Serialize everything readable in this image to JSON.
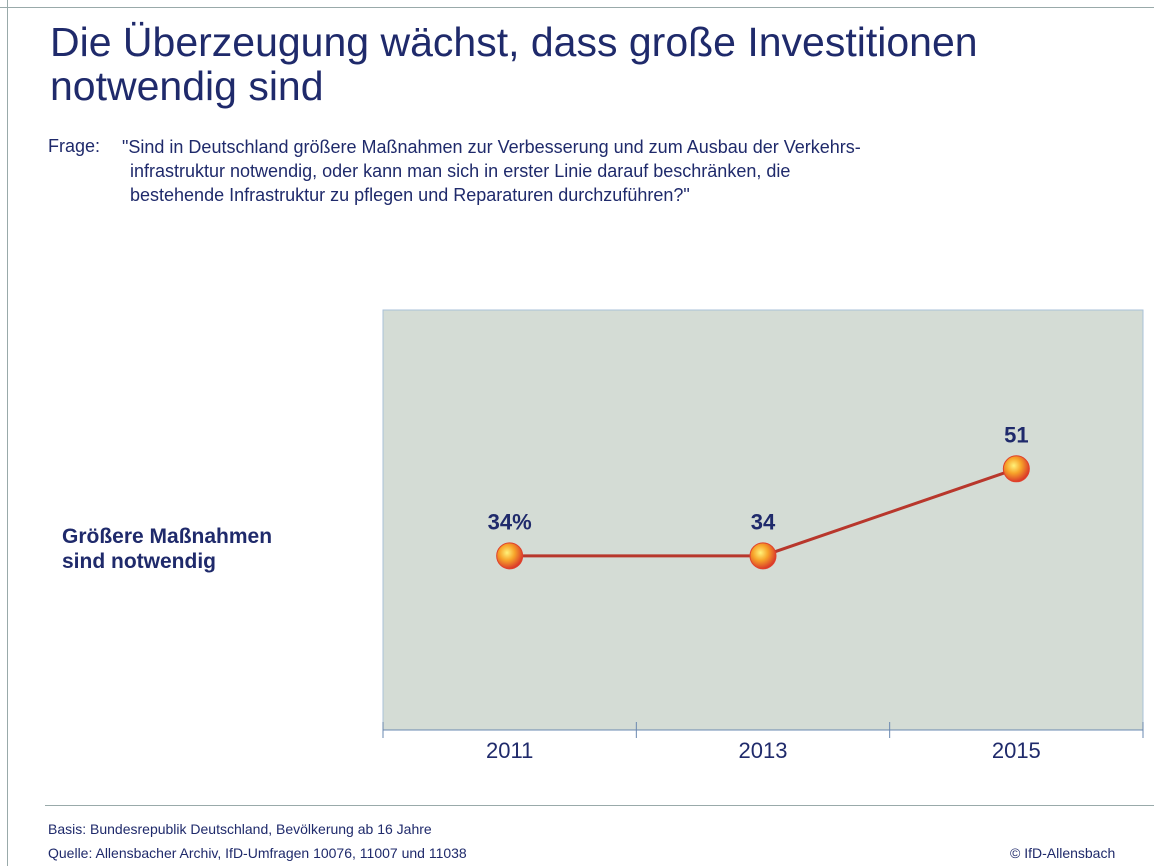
{
  "chart_data": {
    "type": "line",
    "title": "Die Überzeugung wächst, dass große Investitionen notwendig sind",
    "question_label": "Frage:",
    "question_lines": [
      "\"Sind in Deutschland größere Maßnahmen zur Verbesserung und zum Ausbau der Verkehrs-",
      "infrastruktur notwendig, oder kann man sich in erster Linie darauf beschränken, die",
      "bestehende Infrastruktur zu pflegen und Reparaturen durchzuführen?\""
    ],
    "categories": [
      "2011",
      "2013",
      "2015"
    ],
    "series": [
      {
        "name": "Größere Maßnahmen sind notwendig",
        "color": "#b8372c",
        "values": [
          34,
          34,
          51
        ],
        "value_labels": [
          "34%",
          "34",
          "51"
        ]
      }
    ],
    "ylim": [
      0,
      82
    ],
    "footer": {
      "basis": "Basis: Bundesrepublik Deutschland, Bevölkerung ab 16 Jahre",
      "source": "Quelle: Allensbacher Archiv, IfD-Umfragen 10076, 11007 und 11038",
      "copyright": "© IfD-Allensbach"
    }
  }
}
